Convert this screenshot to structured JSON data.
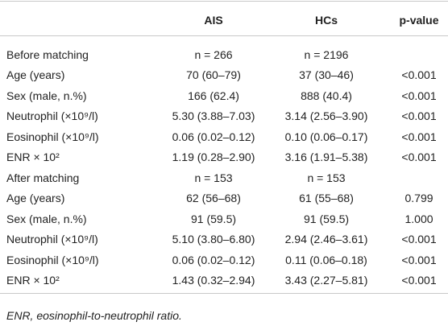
{
  "table": {
    "columns": [
      "AIS",
      "HCs",
      "p-value"
    ],
    "rows": [
      [
        "Before matching",
        "n = 266",
        "n = 2196"
      ],
      [
        "Age (years)",
        "70 (60–79)",
        "37 (30–46)",
        "<0.001"
      ],
      [
        "Sex (male, n.%)",
        "166 (62.4)",
        "888 (40.4)",
        "<0.001"
      ],
      [
        "Neutrophil (×10⁹/l)",
        "5.30 (3.88–7.03)",
        "3.14 (2.56–3.90)",
        "<0.001"
      ],
      [
        "Eosinophil (×10⁹/l)",
        "0.06 (0.02–0.12)",
        "0.10 (0.06–0.17)",
        "<0.001"
      ],
      [
        "ENR × 10²",
        "1.19 (0.28–2.90)",
        "3.16 (1.91–5.38)",
        "<0.001"
      ],
      [
        "After matching",
        "n = 153",
        "n = 153"
      ],
      [
        "Age (years)",
        "62 (56–68)",
        "61 (55–68)",
        "0.799"
      ],
      [
        "Sex (male, n.%)",
        "91 (59.5)",
        "91 (59.5)",
        "1.000"
      ],
      [
        "Neutrophil (×10⁹/l)",
        "5.10 (3.80–6.80)",
        "2.94 (2.46–3.61)",
        "<0.001"
      ],
      [
        "Eosinophil (×10⁹/l)",
        "0.06 (0.02–0.12)",
        "0.11 (0.06–0.18)",
        "<0.001"
      ],
      [
        "ENR × 10²",
        "1.43 (0.32–2.94)",
        "3.43 (2.27–5.81)",
        "<0.001"
      ]
    ],
    "footnote": "ENR, eosinophil-to-neutrophil ratio."
  }
}
